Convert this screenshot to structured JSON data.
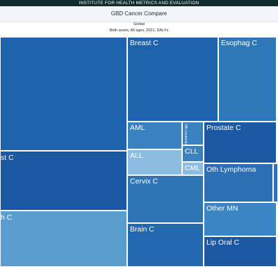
{
  "header": {
    "org": "INSTITUTE FOR HEALTH METRICS AND EVALUATION",
    "app_title": "GBD Cancer Compare"
  },
  "chart_header": {
    "location": "Global",
    "filters": "Both sexes, All ages, 2021, DALYs"
  },
  "colors": {
    "dark": "#1d59a2",
    "medium": "#2f74b5",
    "light": "#5a9bcc",
    "pale": "#8cbde0"
  },
  "cells": [
    {
      "name": "treemap-cell-unlabeled-top",
      "label": "",
      "color": "#1f63ad"
    },
    {
      "name": "treemap-cell-st-c",
      "label": "st C",
      "color": "#1d59a2"
    },
    {
      "name": "treemap-cell-h-c",
      "label": "h C",
      "color": "#5a9ed0"
    },
    {
      "name": "treemap-cell-breast-c",
      "label": "Breast C",
      "color": "#1f63ad"
    },
    {
      "name": "treemap-cell-esophag-c",
      "label": "Esophag C",
      "color": "#2f78b8"
    },
    {
      "name": "treemap-cell-aml",
      "label": "AML",
      "color": "#3a82bf"
    },
    {
      "name": "treemap-cell-oth-leukemia",
      "label": "Oth Leukemia",
      "color": "#3a82bf"
    },
    {
      "name": "treemap-cell-all",
      "label": "ALL",
      "color": "#8cbde0"
    },
    {
      "name": "treemap-cell-cll",
      "label": "CLL",
      "color": "#3a82bf"
    },
    {
      "name": "treemap-cell-cml",
      "label": "CML",
      "color": "#8cbde0"
    },
    {
      "name": "treemap-cell-prostate-c",
      "label": "Prostate C",
      "color": "#1d59a2"
    },
    {
      "name": "treemap-cell-cervix-c",
      "label": "Cervix C",
      "color": "#2f74b5"
    },
    {
      "name": "treemap-cell-oth-lymphoma",
      "label": "Oth Lymphoma",
      "color": "#2c6fb2"
    },
    {
      "name": "treemap-cell-other-mn",
      "label": "Other MN",
      "color": "#3a86c4"
    },
    {
      "name": "treemap-cell-brain-c",
      "label": "Brain C",
      "color": "#2468ae"
    },
    {
      "name": "treemap-cell-lip-oral-c",
      "label": "Lip Oral C",
      "color": "#1d59a2"
    },
    {
      "name": "treemap-cell-edge-1",
      "label": "",
      "color": "#1f63ad"
    },
    {
      "name": "treemap-cell-edge-2",
      "label": "",
      "color": "#2c6fb2"
    },
    {
      "name": "treemap-cell-edge-3",
      "label": "",
      "color": "#1d59a2"
    },
    {
      "name": "treemap-cell-edge-4",
      "label": "",
      "color": "#2f74b5"
    },
    {
      "name": "treemap-cell-edge-5",
      "label": "",
      "color": "#1d59a2"
    }
  ]
}
